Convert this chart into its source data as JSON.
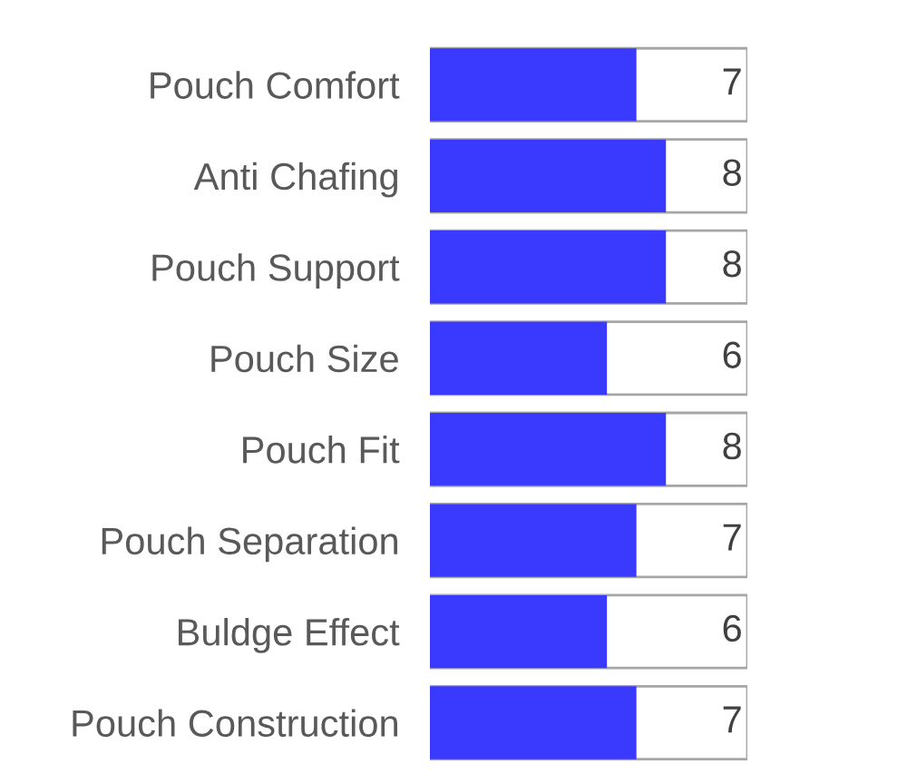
{
  "chart_data": {
    "type": "bar",
    "orientation": "horizontal",
    "categories": [
      "Pouch Comfort",
      "Anti Chafing",
      "Pouch Support",
      "Pouch Size",
      "Pouch Fit",
      "Pouch Separation",
      "Buldge Effect",
      "Pouch Construction"
    ],
    "values": [
      7,
      8,
      8,
      6,
      8,
      7,
      6,
      7
    ],
    "color": "#3a3aff",
    "data_labels": true,
    "grid": false,
    "legend": false
  }
}
